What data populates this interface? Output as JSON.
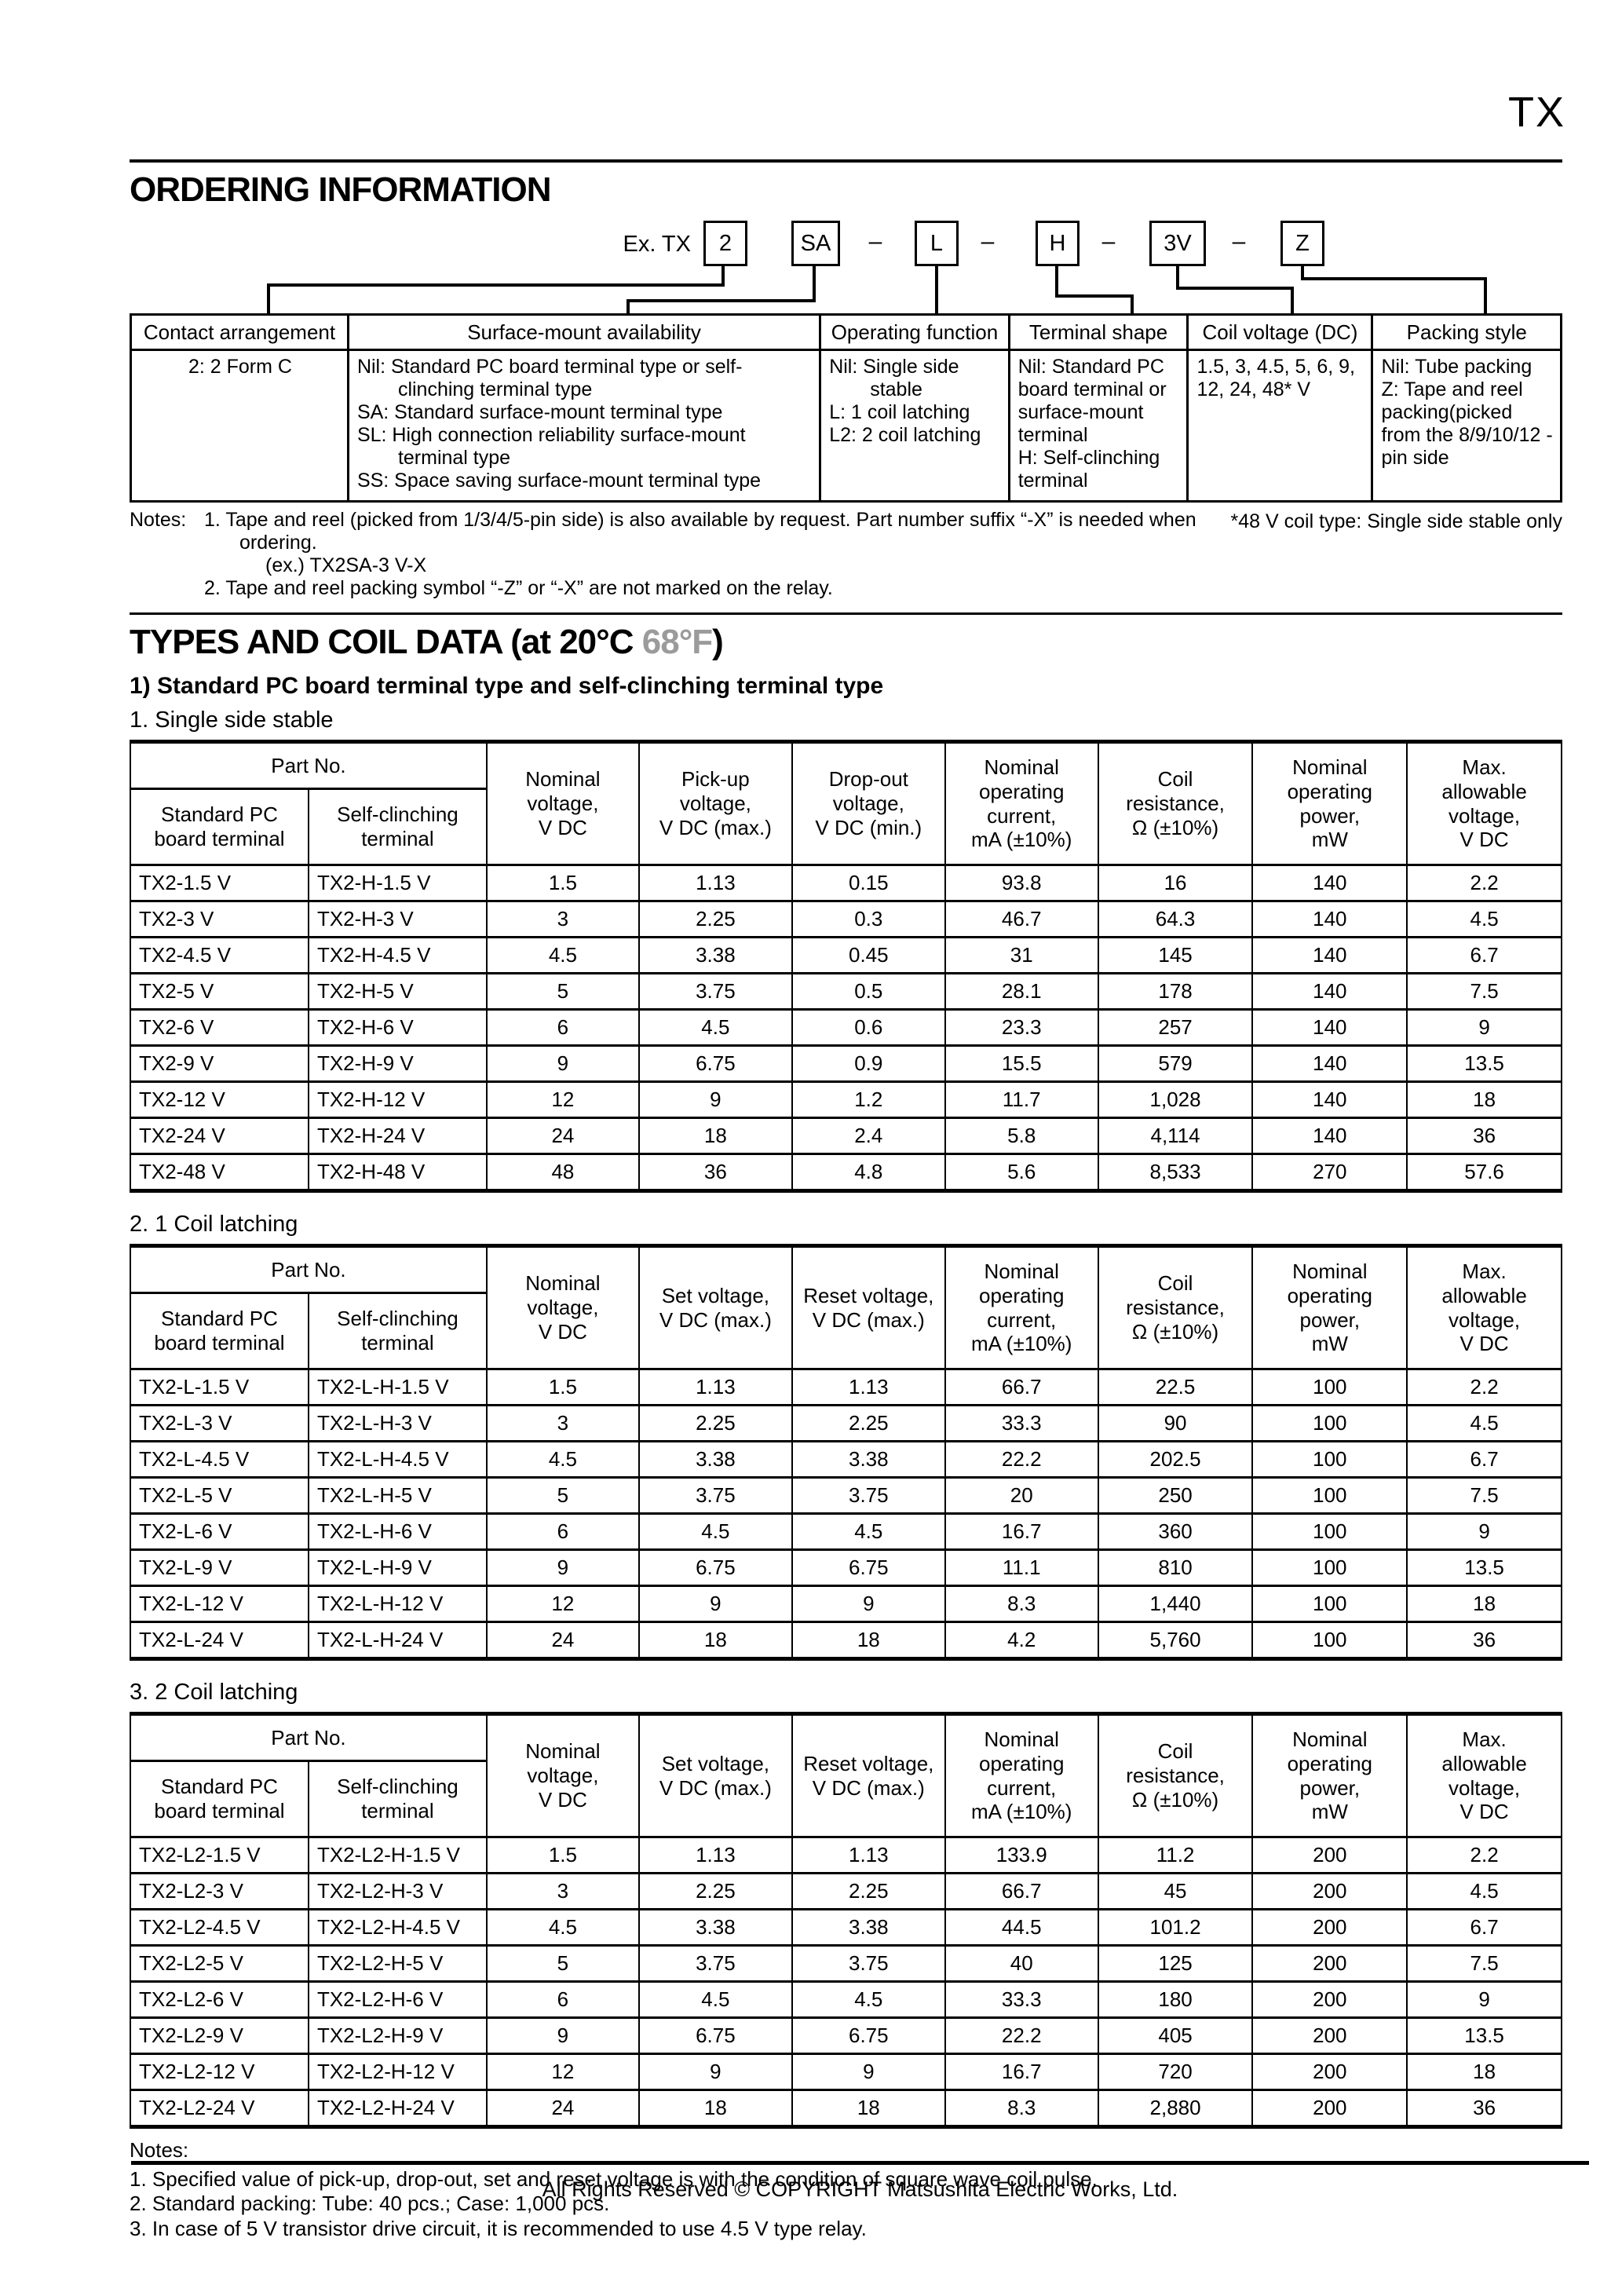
{
  "page": {
    "doc_code": "TX",
    "footer": "All Rights Reserved © COPYRIGHT Matsushita Electric Works, Ltd."
  },
  "ordering": {
    "title": "ORDERING INFORMATION",
    "example": {
      "prefix": "Ex. TX",
      "boxes": [
        "2",
        "SA",
        "L",
        "H",
        "3V",
        "Z"
      ],
      "dash": "–"
    },
    "table": {
      "headers": [
        "Contact arrangement",
        "Surface-mount availability",
        "Operating function",
        "Terminal shape",
        "Coil voltage (DC)",
        "Packing style"
      ],
      "cells": [
        [
          "2: 2 Form C"
        ],
        [
          "Nil: Standard PC board terminal type or self-clinching terminal type",
          "SA: Standard surface-mount terminal type",
          "SL: High connection reliability surface-mount terminal type",
          "SS: Space saving surface-mount terminal type"
        ],
        [
          "Nil: Single side stable",
          "L: 1 coil latching",
          "L2: 2 coil latching"
        ],
        [
          "Nil: Standard PC board terminal or surface-mount terminal",
          "H: Self-clinching terminal"
        ],
        [
          "1.5, 3, 4.5, 5, 6, 9, 12, 24, 48* V"
        ],
        [
          "Nil: Tube packing",
          "Z: Tape and reel packing(picked from the 8/9/10/12 -pin side"
        ]
      ]
    },
    "notes_label": "Notes:",
    "notes": [
      "1. Tape and reel (picked from 1/3/4/5-pin side) is also available by request. Part number suffix “-X” is needed when ordering.",
      "(ex.) TX2SA-3 V-X",
      "2. Tape and reel packing symbol “-Z” or “-X” are not marked on the relay."
    ],
    "side_note": "*48 V coil type: Single side stable only"
  },
  "types": {
    "title_main": "TYPES AND COIL DATA (at 20°C ",
    "title_gray": "68°F",
    "title_close": ")",
    "subtitle": "1) Standard PC board terminal type and self-clinching terminal type",
    "tables": [
      {
        "caption": "1. Single side stable",
        "headers": {
          "part_no": "Part No.",
          "sub1": [
            "Standard PC",
            "board terminal"
          ],
          "sub2": [
            "Self-clinching",
            "terminal"
          ],
          "cols": [
            [
              "Nominal",
              "voltage,",
              "V DC"
            ],
            [
              "Pick-up",
              "voltage,",
              "V DC (max.)"
            ],
            [
              "Drop-out",
              "voltage,",
              "V DC (min.)"
            ],
            [
              "Nominal",
              "operating",
              "current,",
              "mA (±10%)"
            ],
            [
              "Coil",
              "resistance,",
              "Ω (±10%)"
            ],
            [
              "Nominal",
              "operating",
              "power,",
              "mW"
            ],
            [
              "Max.",
              "allowable",
              "voltage,",
              "V DC"
            ]
          ]
        },
        "rows": [
          [
            "TX2-1.5 V",
            "TX2-H-1.5 V",
            "1.5",
            "1.13",
            "0.15",
            "93.8",
            "16",
            "140",
            "2.2"
          ],
          [
            "TX2-3 V",
            "TX2-H-3 V",
            "3",
            "2.25",
            "0.3",
            "46.7",
            "64.3",
            "140",
            "4.5"
          ],
          [
            "TX2-4.5 V",
            "TX2-H-4.5 V",
            "4.5",
            "3.38",
            "0.45",
            "31",
            "145",
            "140",
            "6.7"
          ],
          [
            "TX2-5 V",
            "TX2-H-5 V",
            "5",
            "3.75",
            "0.5",
            "28.1",
            "178",
            "140",
            "7.5"
          ],
          [
            "TX2-6 V",
            "TX2-H-6 V",
            "6",
            "4.5",
            "0.6",
            "23.3",
            "257",
            "140",
            "9"
          ],
          [
            "TX2-9 V",
            "TX2-H-9 V",
            "9",
            "6.75",
            "0.9",
            "15.5",
            "579",
            "140",
            "13.5"
          ],
          [
            "TX2-12 V",
            "TX2-H-12 V",
            "12",
            "9",
            "1.2",
            "11.7",
            "1,028",
            "140",
            "18"
          ],
          [
            "TX2-24 V",
            "TX2-H-24 V",
            "24",
            "18",
            "2.4",
            "5.8",
            "4,114",
            "140",
            "36"
          ],
          [
            "TX2-48 V",
            "TX2-H-48 V",
            "48",
            "36",
            "4.8",
            "5.6",
            "8,533",
            "270",
            "57.6"
          ]
        ]
      },
      {
        "caption": "2. 1 Coil latching",
        "headers": {
          "part_no": "Part No.",
          "sub1": [
            "Standard PC",
            "board terminal"
          ],
          "sub2": [
            "Self-clinching",
            "terminal"
          ],
          "cols": [
            [
              "Nominal",
              "voltage,",
              "V DC"
            ],
            [
              "Set voltage,",
              "V DC (max.)"
            ],
            [
              "Reset voltage,",
              "V DC (max.)"
            ],
            [
              "Nominal",
              "operating",
              "current,",
              "mA (±10%)"
            ],
            [
              "Coil",
              "resistance,",
              "Ω (±10%)"
            ],
            [
              "Nominal",
              "operating",
              "power,",
              "mW"
            ],
            [
              "Max.",
              "allowable",
              "voltage,",
              "V DC"
            ]
          ]
        },
        "rows": [
          [
            "TX2-L-1.5 V",
            "TX2-L-H-1.5 V",
            "1.5",
            "1.13",
            "1.13",
            "66.7",
            "22.5",
            "100",
            "2.2"
          ],
          [
            "TX2-L-3 V",
            "TX2-L-H-3 V",
            "3",
            "2.25",
            "2.25",
            "33.3",
            "90",
            "100",
            "4.5"
          ],
          [
            "TX2-L-4.5 V",
            "TX2-L-H-4.5 V",
            "4.5",
            "3.38",
            "3.38",
            "22.2",
            "202.5",
            "100",
            "6.7"
          ],
          [
            "TX2-L-5 V",
            "TX2-L-H-5 V",
            "5",
            "3.75",
            "3.75",
            "20",
            "250",
            "100",
            "7.5"
          ],
          [
            "TX2-L-6 V",
            "TX2-L-H-6 V",
            "6",
            "4.5",
            "4.5",
            "16.7",
            "360",
            "100",
            "9"
          ],
          [
            "TX2-L-9 V",
            "TX2-L-H-9 V",
            "9",
            "6.75",
            "6.75",
            "11.1",
            "810",
            "100",
            "13.5"
          ],
          [
            "TX2-L-12 V",
            "TX2-L-H-12 V",
            "12",
            "9",
            "9",
            "8.3",
            "1,440",
            "100",
            "18"
          ],
          [
            "TX2-L-24 V",
            "TX2-L-H-24 V",
            "24",
            "18",
            "18",
            "4.2",
            "5,760",
            "100",
            "36"
          ]
        ]
      },
      {
        "caption": "3. 2 Coil latching",
        "headers": {
          "part_no": "Part No.",
          "sub1": [
            "Standard PC",
            "board terminal"
          ],
          "sub2": [
            "Self-clinching",
            "terminal"
          ],
          "cols": [
            [
              "Nominal",
              "voltage,",
              "V DC"
            ],
            [
              "Set voltage,",
              "V DC (max.)"
            ],
            [
              "Reset voltage,",
              "V DC (max.)"
            ],
            [
              "Nominal",
              "operating",
              "current,",
              "mA (±10%)"
            ],
            [
              "Coil",
              "resistance,",
              "Ω (±10%)"
            ],
            [
              "Nominal",
              "operating",
              "power,",
              "mW"
            ],
            [
              "Max.",
              "allowable",
              "voltage,",
              "V DC"
            ]
          ]
        },
        "rows": [
          [
            "TX2-L2-1.5 V",
            "TX2-L2-H-1.5 V",
            "1.5",
            "1.13",
            "1.13",
            "133.9",
            "11.2",
            "200",
            "2.2"
          ],
          [
            "TX2-L2-3 V",
            "TX2-L2-H-3 V",
            "3",
            "2.25",
            "2.25",
            "66.7",
            "45",
            "200",
            "4.5"
          ],
          [
            "TX2-L2-4.5 V",
            "TX2-L2-H-4.5 V",
            "4.5",
            "3.38",
            "3.38",
            "44.5",
            "101.2",
            "200",
            "6.7"
          ],
          [
            "TX2-L2-5 V",
            "TX2-L2-H-5 V",
            "5",
            "3.75",
            "3.75",
            "40",
            "125",
            "200",
            "7.5"
          ],
          [
            "TX2-L2-6 V",
            "TX2-L2-H-6 V",
            "6",
            "4.5",
            "4.5",
            "33.3",
            "180",
            "200",
            "9"
          ],
          [
            "TX2-L2-9 V",
            "TX2-L2-H-9 V",
            "9",
            "6.75",
            "6.75",
            "22.2",
            "405",
            "200",
            "13.5"
          ],
          [
            "TX2-L2-12 V",
            "TX2-L2-H-12 V",
            "12",
            "9",
            "9",
            "16.7",
            "720",
            "200",
            "18"
          ],
          [
            "TX2-L2-24 V",
            "TX2-L2-H-24 V",
            "24",
            "18",
            "18",
            "8.3",
            "2,880",
            "200",
            "36"
          ]
        ]
      }
    ],
    "notes_label": "Notes:",
    "notes": [
      "1. Specified value of pick-up, drop-out, set and reset voltage is with the condition of square wave coil pulse.",
      "2. Standard packing: Tube: 40 pcs.; Case: 1,000 pcs.",
      "3. In case of 5 V transistor drive circuit, it is recommended to use 4.5 V type relay."
    ]
  }
}
